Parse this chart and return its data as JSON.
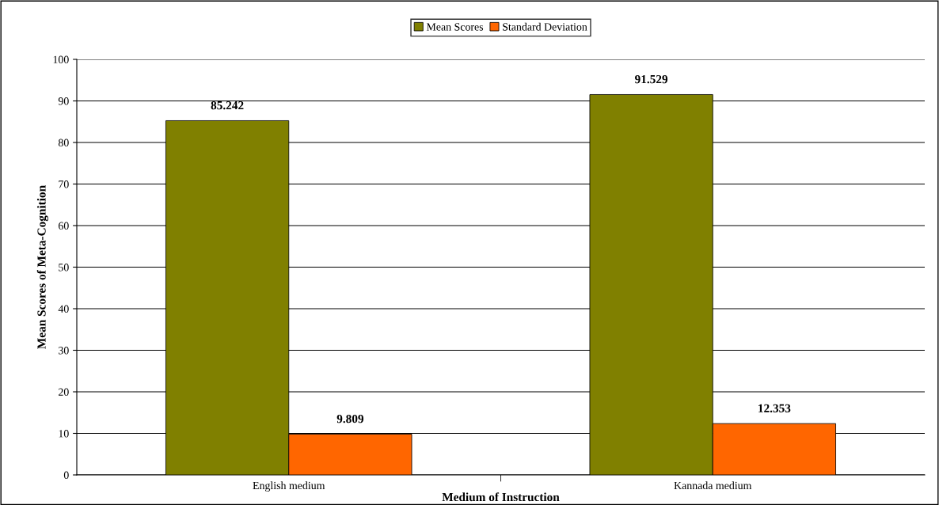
{
  "chart_data": {
    "type": "bar",
    "xlabel": "Medium of Instruction",
    "ylabel": "Mean Scores of Meta-Cognition",
    "categories": [
      "English medium",
      "Kannada medium"
    ],
    "series": [
      {
        "name": "Mean Scores",
        "color": "#808000",
        "values": [
          85.242,
          91.529
        ]
      },
      {
        "name": "Standard Deviation",
        "color": "#ff6600",
        "values": [
          9.809,
          12.353
        ]
      }
    ],
    "ylim": [
      0,
      100
    ],
    "yticks": [
      0,
      10,
      20,
      30,
      40,
      50,
      60,
      70,
      80,
      90,
      100
    ],
    "grid": "y",
    "legend": "top",
    "data_labels": true
  }
}
